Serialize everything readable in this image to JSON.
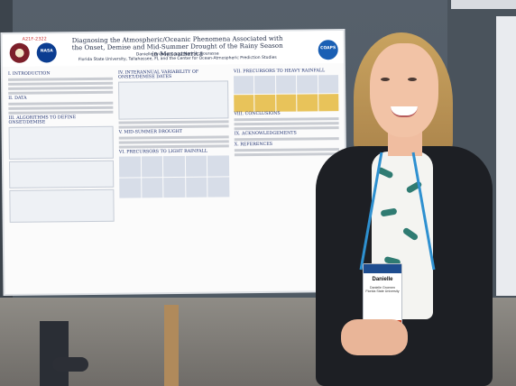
{
  "poster": {
    "id": "A21F-2322",
    "title": "Diagnosing the Atmospheric/Oceanic Phenomena Associated with the Onset, Demise and Mid-Summer Drought of the Rainy Season in Mesoamerica",
    "authors": "Danielle Groenen* and Mark A. Bourassa",
    "affiliation": "Florida State University, Tallahassee, FL and the Center for Ocean-Atmospheric Prediction Studies",
    "logos": {
      "fsu": "",
      "nasa": "NASA",
      "coaps": "COAPS"
    },
    "sections": {
      "s1": "I. INTRODUCTION",
      "s2": "II. DATA",
      "s3": "III. ALGORITHMS TO DEFINE ONSET/DEMISE",
      "s4": "IV. INTERANNUAL VARIABILITY OF ONSET/DEMISE DATES",
      "s5": "V. MID-SUMMER DROUGHT",
      "s6": "VI. PRECURSORS TO LIGHT RAINFALL",
      "s7": "VII. PRECURSORS TO HEAVY RAINFALL",
      "s8": "VIII. CONCLUSIONS",
      "s9": "IX. ACKNOWLEDGEMENTS",
      "s10": "X. REFERENCES"
    }
  },
  "badge": {
    "name": "Danielle",
    "full_name": "Danielle Groenen",
    "org": "Florida State University",
    "ribbon": "AGU FALL MEETING"
  },
  "icons": {
    "fsu_logo": "fsu-seal-icon",
    "nasa_logo": "nasa-logo-icon",
    "coaps_logo": "coaps-logo-icon"
  },
  "colors": {
    "poster_heading": "#1d2f6f",
    "badge_header": "#1e4d8f",
    "badge_ribbon": "#c63a1b",
    "lanyard": "#2e90d0"
  }
}
